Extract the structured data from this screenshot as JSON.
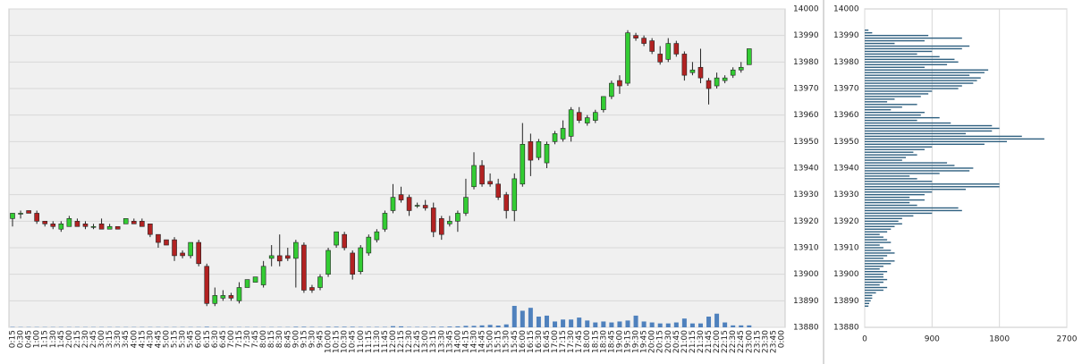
{
  "chart_data": [
    {
      "type": "candlestick",
      "categories": [
        "0:15",
        "0:30",
        "0:45",
        "1:00",
        "1:15",
        "1:30",
        "1:45",
        "2:00",
        "2:15",
        "2:30",
        "2:45",
        "3:00",
        "3:15",
        "3:30",
        "3:45",
        "4:00",
        "4:15",
        "4:30",
        "4:45",
        "5:00",
        "5:15",
        "5:30",
        "5:45",
        "6:00",
        "6:15",
        "6:30",
        "6:45",
        "7:00",
        "7:15",
        "7:30",
        "7:45",
        "8:00",
        "8:15",
        "8:30",
        "8:45",
        "9:00",
        "9:15",
        "9:30",
        "9:45",
        "10:00",
        "10:15",
        "10:30",
        "10:45",
        "11:00",
        "11:15",
        "11:30",
        "11:45",
        "12:00",
        "12:15",
        "12:30",
        "12:45",
        "13:00",
        "13:15",
        "13:30",
        "13:45",
        "14:00",
        "14:15",
        "14:30",
        "14:45",
        "15:00",
        "15:15",
        "15:30",
        "15:45",
        "16:00",
        "16:15",
        "16:30",
        "16:45",
        "17:00",
        "17:15",
        "17:30",
        "17:45",
        "18:00",
        "18:15",
        "18:30",
        "18:45",
        "19:00",
        "19:15",
        "19:30",
        "19:45",
        "20:00",
        "20:15",
        "20:30",
        "20:45",
        "21:00",
        "21:15",
        "21:30",
        "21:45",
        "22:00",
        "22:15",
        "22:30",
        "22:45",
        "23:00",
        "23:15",
        "23:30",
        "23:45",
        "0:00"
      ],
      "open": [
        13921,
        13923,
        13924,
        13923,
        13920,
        13919,
        13917,
        13918,
        13920,
        13919,
        13918,
        13919,
        13917,
        13918,
        13919,
        13920,
        13920,
        13919,
        13915,
        13913,
        13913,
        13908,
        13907,
        13912,
        13903,
        13889,
        13891,
        13892,
        13890,
        13895,
        13897,
        13896,
        13906,
        13907,
        13907,
        13906,
        13911,
        13895,
        13895,
        13900,
        13911,
        13915,
        13908,
        13901,
        13908,
        13913,
        13917,
        13924,
        13930,
        13929,
        13926,
        13926,
        13925,
        13921,
        13919,
        13920,
        13923,
        13933,
        13941,
        13935,
        13934,
        13930,
        13924,
        13934,
        13950,
        13944,
        13942,
        13950,
        13951,
        13952,
        13961,
        13957,
        13958,
        13962,
        13967,
        13973,
        13972,
        13990,
        13989,
        13988,
        13983,
        13981,
        13987,
        13983,
        13976,
        13978,
        13973,
        13971,
        13973,
        13975,
        13977,
        13979,
        null,
        null,
        null,
        null
      ],
      "high": [
        13923,
        13924,
        13924,
        13924,
        13920,
        13920,
        13920,
        13922,
        13921,
        13920,
        13919,
        13921,
        13919,
        13918,
        13921,
        13921,
        13921,
        13919,
        13915,
        13913,
        13914,
        13909,
        13912,
        13913,
        13904,
        13895,
        13894,
        13893,
        13897,
        13898,
        13899,
        13905,
        13911,
        13915,
        13910,
        13913,
        13912,
        13896,
        13900,
        13910,
        13916,
        13916,
        13909,
        13911,
        13915,
        13917,
        13924,
        13934,
        13933,
        13930,
        13927,
        13928,
        13927,
        13922,
        13922,
        13924,
        13936,
        13946,
        13943,
        13938,
        13936,
        13931,
        13938,
        13957,
        13953,
        13951,
        13950,
        13954,
        13958,
        13963,
        13963,
        13960,
        13962,
        13967,
        13973,
        13975,
        13992,
        13991,
        13990,
        13989,
        13986,
        13989,
        13988,
        13984,
        13980,
        13985,
        13974,
        13976,
        13975,
        13978,
        13980,
        13985,
        null,
        null,
        null,
        null
      ],
      "low": [
        13918,
        13921,
        13923,
        13919,
        13918,
        13917,
        13916,
        13918,
        13918,
        13917,
        13917,
        13917,
        13917,
        13917,
        13919,
        13919,
        13918,
        13914,
        13910,
        13911,
        13905,
        13906,
        13906,
        13903,
        13888,
        13888,
        13890,
        13890,
        13889,
        13895,
        13897,
        13895,
        13903,
        13903,
        13905,
        13895,
        13893,
        13893,
        13894,
        13899,
        13910,
        13909,
        13898,
        13900,
        13907,
        13912,
        13916,
        13923,
        13927,
        13922,
        13925,
        13924,
        13914,
        13913,
        13918,
        13916,
        13922,
        13932,
        13933,
        13933,
        13928,
        13921,
        13920,
        13933,
        13937,
        13943,
        13940,
        13949,
        13950,
        13950,
        13957,
        13956,
        13957,
        13961,
        13966,
        13968,
        13971,
        13988,
        13986,
        13983,
        13979,
        13980,
        13982,
        13973,
        13975,
        13972,
        13964,
        13970,
        13972,
        13974,
        13976,
        13979,
        null,
        null,
        null,
        null
      ],
      "close": [
        13923,
        13923,
        13923,
        13920,
        13919,
        13918,
        13919,
        13921,
        13918,
        13918,
        13918,
        13917,
        13918,
        13917,
        13921,
        13919,
        13918,
        13915,
        13912,
        13911,
        13907,
        13907,
        13912,
        13904,
        13889,
        13892,
        13892,
        13891,
        13895,
        13898,
        13899,
        13903,
        13907,
        13905,
        13906,
        13912,
        13894,
        13894,
        13899,
        13909,
        13916,
        13910,
        13900,
        13910,
        13914,
        13916,
        13923,
        13929,
        13928,
        13924,
        13926,
        13925,
        13916,
        13915,
        13920,
        13923,
        13929,
        13941,
        13934,
        13934,
        13929,
        13924,
        13936,
        13949,
        13943,
        13950,
        13949,
        13953,
        13955,
        13962,
        13958,
        13959,
        13961,
        13967,
        13972,
        13971,
        13991,
        13989,
        13987,
        13984,
        13980,
        13987,
        13983,
        13975,
        13977,
        13974,
        13970,
        13974,
        13974,
        13977,
        13978,
        13985,
        null,
        null,
        null,
        null
      ],
      "volume": [
        40,
        30,
        30,
        30,
        30,
        30,
        30,
        30,
        30,
        30,
        30,
        30,
        30,
        30,
        30,
        30,
        30,
        30,
        30,
        30,
        30,
        30,
        30,
        30,
        60,
        30,
        30,
        30,
        30,
        30,
        30,
        30,
        30,
        30,
        30,
        60,
        60,
        40,
        30,
        60,
        60,
        60,
        60,
        40,
        40,
        40,
        40,
        120,
        100,
        40,
        40,
        40,
        60,
        60,
        80,
        100,
        150,
        150,
        200,
        250,
        180,
        300,
        2200,
        1700,
        2000,
        1100,
        1200,
        600,
        800,
        800,
        1000,
        700,
        500,
        600,
        500,
        600,
        700,
        1200,
        600,
        500,
        400,
        400,
        500,
        900,
        400,
        400,
        1100,
        1400,
        500,
        200,
        200,
        200,
        null,
        null,
        null,
        null
      ],
      "ylim": [
        13880,
        14000
      ],
      "yticks": [
        13880,
        13890,
        13900,
        13910,
        13920,
        13930,
        13940,
        13950,
        13960,
        13970,
        13980,
        13990,
        14000
      ],
      "up_color": "#33cc33",
      "down_color": "#b22222",
      "volume_color": "#4f81bd",
      "grid": true
    },
    {
      "type": "bar",
      "orientation": "horizontal",
      "y": [
        13992,
        13991,
        13990,
        13989,
        13988,
        13987,
        13986,
        13985,
        13984,
        13983,
        13982,
        13981,
        13980,
        13979,
        13978,
        13977,
        13976,
        13975,
        13974,
        13973,
        13972,
        13971,
        13970,
        13969,
        13968,
        13967,
        13966,
        13965,
        13964,
        13963,
        13962,
        13961,
        13960,
        13959,
        13958,
        13957,
        13956,
        13955,
        13954,
        13953,
        13952,
        13951,
        13950,
        13949,
        13948,
        13947,
        13946,
        13945,
        13944,
        13943,
        13942,
        13941,
        13940,
        13939,
        13938,
        13937,
        13936,
        13935,
        13934,
        13933,
        13932,
        13931,
        13930,
        13929,
        13928,
        13927,
        13926,
        13925,
        13924,
        13923,
        13922,
        13921,
        13920,
        13919,
        13918,
        13917,
        13916,
        13915,
        13914,
        13913,
        13912,
        13911,
        13910,
        13909,
        13908,
        13907,
        13906,
        13905,
        13904,
        13903,
        13902,
        13901,
        13900,
        13899,
        13898,
        13897,
        13896,
        13895,
        13894,
        13893,
        13892,
        13891,
        13890,
        13889,
        13888
      ],
      "values": [
        50,
        100,
        850,
        1300,
        800,
        400,
        1400,
        1300,
        900,
        700,
        1000,
        1200,
        1250,
        1100,
        800,
        1650,
        1600,
        1400,
        1550,
        1500,
        1450,
        1300,
        1250,
        900,
        850,
        750,
        400,
        300,
        700,
        500,
        350,
        800,
        750,
        1000,
        700,
        1150,
        1700,
        1800,
        1700,
        1350,
        2100,
        2400,
        1900,
        1600,
        900,
        800,
        650,
        700,
        550,
        500,
        1100,
        1200,
        1450,
        1400,
        1000,
        600,
        700,
        900,
        1800,
        1800,
        1350,
        900,
        800,
        600,
        800,
        600,
        700,
        1250,
        1300,
        900,
        650,
        500,
        450,
        500,
        400,
        350,
        300,
        200,
        250,
        300,
        350,
        200,
        250,
        350,
        400,
        300,
        250,
        400,
        350,
        250,
        200,
        300,
        250,
        250,
        300,
        250,
        200,
        300,
        250,
        150,
        100,
        100,
        80,
        60,
        50
      ],
      "color": "#2f6080",
      "xlim": [
        0,
        2700
      ],
      "xticks": [
        0,
        900,
        1800,
        2700
      ],
      "ylim": [
        13880,
        14000
      ],
      "yticks": [
        13880,
        13890,
        13900,
        13910,
        13920,
        13930,
        13940,
        13950,
        13960,
        13970,
        13980,
        13990,
        14000
      ],
      "grid": true
    }
  ]
}
